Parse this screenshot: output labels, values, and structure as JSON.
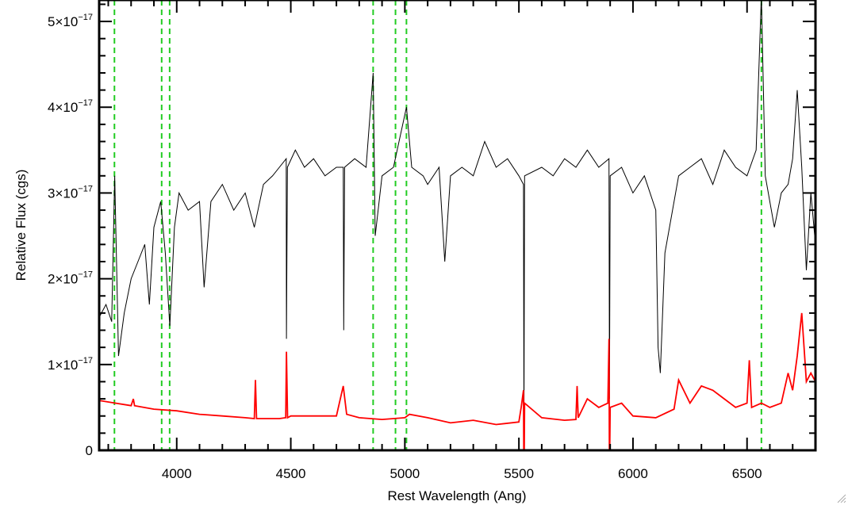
{
  "chart_data": {
    "type": "line",
    "xlabel": "Rest Wavelength (Ang)",
    "ylabel": "Relative Flux (cgs)",
    "xlim": [
      3660,
      6800
    ],
    "ylim": [
      0,
      5.25e-17
    ],
    "x_ticks": [
      {
        "value": 4000,
        "label": "4000"
      },
      {
        "value": 4500,
        "label": "4500"
      },
      {
        "value": 5000,
        "label": "5000"
      },
      {
        "value": 5500,
        "label": "5500"
      },
      {
        "value": 6000,
        "label": "6000"
      },
      {
        "value": 6500,
        "label": "6500"
      }
    ],
    "y_ticks": [
      {
        "value": 0,
        "mantissa": "0",
        "exponent": ""
      },
      {
        "value": 1e-17,
        "mantissa": "1×10",
        "exponent": "−17"
      },
      {
        "value": 2e-17,
        "mantissa": "2×10",
        "exponent": "−17"
      },
      {
        "value": 3e-17,
        "mantissa": "3×10",
        "exponent": "−17"
      },
      {
        "value": 4e-17,
        "mantissa": "4×10",
        "exponent": "−17"
      },
      {
        "value": 5e-17,
        "mantissa": "5×10",
        "exponent": "−17"
      }
    ],
    "line_markers": [
      3727,
      3934,
      3969,
      4861,
      4959,
      5007,
      6563
    ],
    "series": [
      {
        "color": "#000000",
        "points": [
          [
            3660,
            1.55e-17
          ],
          [
            3690,
            1.7e-17
          ],
          [
            3715,
            1.5e-17
          ],
          [
            3728,
            3.2e-17
          ],
          [
            3745,
            1.1e-17
          ],
          [
            3770,
            1.6e-17
          ],
          [
            3800,
            2e-17
          ],
          [
            3830,
            2.2e-17
          ],
          [
            3860,
            2.4e-17
          ],
          [
            3880,
            1.7e-17
          ],
          [
            3900,
            2.6e-17
          ],
          [
            3930,
            2.9e-17
          ],
          [
            3950,
            2.3e-17
          ],
          [
            3970,
            1.45e-17
          ],
          [
            3990,
            2.6e-17
          ],
          [
            4010,
            3e-17
          ],
          [
            4050,
            2.8e-17
          ],
          [
            4100,
            2.9e-17
          ],
          [
            4120,
            1.9e-17
          ],
          [
            4150,
            2.9e-17
          ],
          [
            4200,
            3.1e-17
          ],
          [
            4250,
            2.8e-17
          ],
          [
            4300,
            3e-17
          ],
          [
            4340,
            2.6e-17
          ],
          [
            4380,
            3.1e-17
          ],
          [
            4420,
            3.2e-17
          ],
          [
            4450,
            3.3e-17
          ],
          [
            4480,
            3.4e-17
          ],
          [
            4481,
            1.3e-17
          ],
          [
            4485,
            3.3e-17
          ],
          [
            4520,
            3.5e-17
          ],
          [
            4560,
            3.3e-17
          ],
          [
            4600,
            3.4e-17
          ],
          [
            4650,
            3.2e-17
          ],
          [
            4700,
            3.3e-17
          ],
          [
            4730,
            3.3e-17
          ],
          [
            4732,
            1.4e-17
          ],
          [
            4736,
            3.3e-17
          ],
          [
            4780,
            3.4e-17
          ],
          [
            4830,
            3.3e-17
          ],
          [
            4861,
            4.4e-17
          ],
          [
            4870,
            2.5e-17
          ],
          [
            4900,
            3.2e-17
          ],
          [
            4950,
            3.3e-17
          ],
          [
            5007,
            4e-17
          ],
          [
            5030,
            3.3e-17
          ],
          [
            5080,
            3.2e-17
          ],
          [
            5100,
            3.1e-17
          ],
          [
            5150,
            3.3e-17
          ],
          [
            5175,
            2.2e-17
          ],
          [
            5200,
            3.2e-17
          ],
          [
            5250,
            3.3e-17
          ],
          [
            5300,
            3.2e-17
          ],
          [
            5350,
            3.6e-17
          ],
          [
            5400,
            3.3e-17
          ],
          [
            5450,
            3.4e-17
          ],
          [
            5500,
            3.2e-17
          ],
          [
            5520,
            3.1e-17
          ],
          [
            5522,
            3e-18
          ],
          [
            5525,
            3.2e-17
          ],
          [
            5600,
            3.3e-17
          ],
          [
            5650,
            3.2e-17
          ],
          [
            5700,
            3.4e-17
          ],
          [
            5750,
            3.3e-17
          ],
          [
            5800,
            3.5e-17
          ],
          [
            5850,
            3.3e-17
          ],
          [
            5895,
            3.4e-17
          ],
          [
            5897,
            6e-18
          ],
          [
            5900,
            3.2e-17
          ],
          [
            5950,
            3.3e-17
          ],
          [
            6000,
            3e-17
          ],
          [
            6050,
            3.2e-17
          ],
          [
            6100,
            2.8e-17
          ],
          [
            6110,
            1.2e-17
          ],
          [
            6120,
            9e-18
          ],
          [
            6140,
            2.3e-17
          ],
          [
            6200,
            3.2e-17
          ],
          [
            6250,
            3.3e-17
          ],
          [
            6300,
            3.4e-17
          ],
          [
            6350,
            3.1e-17
          ],
          [
            6400,
            3.5e-17
          ],
          [
            6450,
            3.3e-17
          ],
          [
            6500,
            3.2e-17
          ],
          [
            6540,
            3.5e-17
          ],
          [
            6563,
            5.3e-17
          ],
          [
            6580,
            3.2e-17
          ],
          [
            6620,
            2.6e-17
          ],
          [
            6650,
            3e-17
          ],
          [
            6680,
            3.1e-17
          ],
          [
            6700,
            3.4e-17
          ],
          [
            6720,
            4.2e-17
          ],
          [
            6740,
            3.3e-17
          ],
          [
            6760,
            2.1e-17
          ],
          [
            6780,
            3e-17
          ],
          [
            6800,
            2.4e-17
          ]
        ]
      },
      {
        "color": "#ff0000",
        "points": [
          [
            3660,
            5.8e-18
          ],
          [
            3800,
            5.2e-18
          ],
          [
            3810,
            6e-18
          ],
          [
            3815,
            5.2e-18
          ],
          [
            3900,
            4.8e-18
          ],
          [
            4000,
            4.6e-18
          ],
          [
            4100,
            4.2e-18
          ],
          [
            4200,
            4e-18
          ],
          [
            4300,
            3.8e-18
          ],
          [
            4340,
            3.7e-18
          ],
          [
            4345,
            8.2e-18
          ],
          [
            4350,
            3.7e-18
          ],
          [
            4450,
            3.7e-18
          ],
          [
            4478,
            3.8e-18
          ],
          [
            4481,
            1.15e-17
          ],
          [
            4486,
            3.8e-18
          ],
          [
            4500,
            4e-18
          ],
          [
            4600,
            4e-18
          ],
          [
            4700,
            4e-18
          ],
          [
            4730,
            7.5e-18
          ],
          [
            4745,
            4.2e-18
          ],
          [
            4800,
            3.8e-18
          ],
          [
            4900,
            3.6e-18
          ],
          [
            5000,
            3.8e-18
          ],
          [
            5020,
            4.2e-18
          ],
          [
            5100,
            3.8e-18
          ],
          [
            5200,
            3.2e-18
          ],
          [
            5300,
            3.5e-18
          ],
          [
            5400,
            3e-18
          ],
          [
            5500,
            3.3e-18
          ],
          [
            5510,
            5e-18
          ],
          [
            5520,
            7e-18
          ],
          [
            5522,
            -5e-18
          ],
          [
            5525,
            5.5e-18
          ],
          [
            5600,
            3.8e-18
          ],
          [
            5700,
            3.5e-18
          ],
          [
            5750,
            3.6e-18
          ],
          [
            5755,
            7.5e-18
          ],
          [
            5760,
            3.8e-18
          ],
          [
            5800,
            6e-18
          ],
          [
            5850,
            5e-18
          ],
          [
            5890,
            5.5e-18
          ],
          [
            5895,
            1.3e-17
          ],
          [
            5897,
            -3e-18
          ],
          [
            5900,
            5e-18
          ],
          [
            5950,
            5.5e-18
          ],
          [
            6000,
            4e-18
          ],
          [
            6100,
            3.8e-18
          ],
          [
            6180,
            4.8e-18
          ],
          [
            6200,
            8.2e-18
          ],
          [
            6250,
            5.5e-18
          ],
          [
            6300,
            7.5e-18
          ],
          [
            6350,
            7e-18
          ],
          [
            6400,
            6e-18
          ],
          [
            6450,
            5e-18
          ],
          [
            6500,
            5.5e-18
          ],
          [
            6510,
            1.05e-17
          ],
          [
            6520,
            5e-18
          ],
          [
            6563,
            5.5e-18
          ],
          [
            6600,
            5e-18
          ],
          [
            6650,
            5.5e-18
          ],
          [
            6680,
            9e-18
          ],
          [
            6700,
            7e-18
          ],
          [
            6720,
            1.1e-17
          ],
          [
            6740,
            1.6e-17
          ],
          [
            6760,
            8e-18
          ],
          [
            6780,
            9e-18
          ],
          [
            6800,
            8e-18
          ]
        ]
      }
    ],
    "marker_color": "#22cc22"
  }
}
